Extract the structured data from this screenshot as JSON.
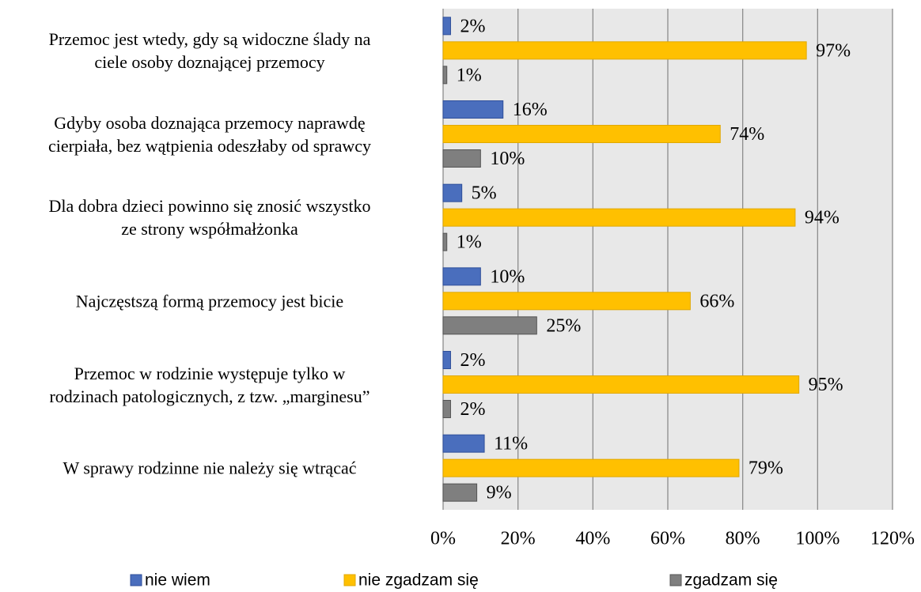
{
  "chart_data": {
    "type": "barh",
    "categories": [
      "Przemoc jest wtedy, gdy są widoczne ślady na\nciele osoby doznającej przemocy",
      "Gdyby osoba doznająca przemocy naprawdę\ncierpiała, bez wątpienia odeszłaby od sprawcy",
      "Dla dobra dzieci powinno się znosić wszystko\nze strony współmałżonka",
      "Najczęstszą formą przemocy jest bicie",
      "Przemoc w rodzinie występuje tylko w\nrodzinach patologicznych, z tzw. „marginesu”",
      "W sprawy rodzinne nie należy się wtrącać"
    ],
    "series": [
      {
        "name": "nie wiem",
        "color": "#4a6ebd",
        "values": [
          2,
          16,
          5,
          10,
          2,
          11
        ],
        "value_labels": [
          "2%",
          "16%",
          "5%",
          "10%",
          "2%",
          "11%"
        ]
      },
      {
        "name": "nie zgadzam się",
        "color": "#ffc000",
        "values": [
          97,
          74,
          94,
          66,
          95,
          79
        ],
        "value_labels": [
          "97%",
          "74%",
          "94%",
          "66%",
          "95%",
          "79%"
        ]
      },
      {
        "name": "zgadzam się",
        "color": "#7f7f7f",
        "values": [
          1,
          10,
          1,
          25,
          2,
          9
        ],
        "value_labels": [
          "1%",
          "10%",
          "1%",
          "25%",
          "2%",
          "9%"
        ]
      }
    ],
    "xlim": [
      0,
      120
    ],
    "xticks": [
      {
        "value": 0,
        "label": "0%"
      },
      {
        "value": 20,
        "label": "20%"
      },
      {
        "value": 40,
        "label": "40%"
      },
      {
        "value": 60,
        "label": "60%"
      },
      {
        "value": 80,
        "label": "80%"
      },
      {
        "value": 100,
        "label": "100%"
      },
      {
        "value": 120,
        "label": "120%"
      }
    ],
    "grid": true,
    "legend": "bottom"
  }
}
